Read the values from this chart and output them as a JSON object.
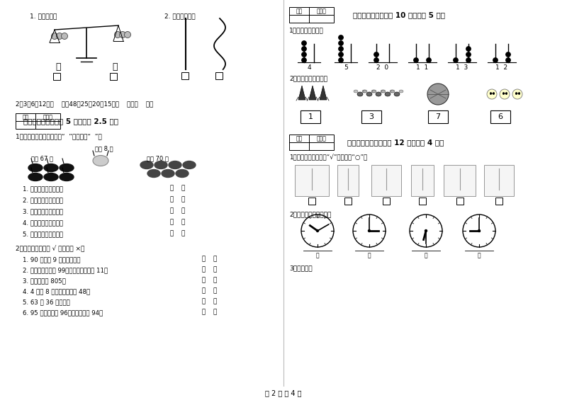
{
  "bg_color": "#ffffff",
  "footer_text": "第 2 页 共 4 页",
  "score_label": "得分",
  "reviewer_label": "评卷人",
  "left": {
    "q1_label": "1. 谁重一些？",
    "q2_label": "2. 哪根长一些？",
    "seq_line": "2、3、6、12、（    ）、48；25、20、15、（    ）、（    ）。",
    "s5_title": "五、对与错（本题共 5 分，每题 2.5 分）",
    "s5_q1_intro": "1、判断下面各题，对的画“  ”，错的画“  ”。",
    "s5_white": "白兔 8 只",
    "s5_black": "黑兔 67 只",
    "s5_grey": "灰兔 70 只",
    "s5_q1": [
      "1. 白兔比黑兔少得多。",
      "2. 黑兔比灰兔少得多。",
      "3. 灰兔比白兔多得多。",
      "4. 灰兔比黑兔多一些。",
      "5. 黑兔与灰兔差不多。"
    ],
    "s5_q2_intro": "2、对的在括号里画 √ ，错的画 ×。",
    "s5_q2": [
      "1. 90 个一和 9 个十同样多。",
      "2. 最大的两位数是 99，最小的两位数是 11。",
      "3. 八十五写作 805。",
      "4. 4 个十 8 个一组成的数是 48。",
      "5. 63 和 36 一样大。",
      "6. 95 前面的数是 96，后面的数是 94。"
    ]
  },
  "right": {
    "s6_title": "六、数一数（本题共 10 分，每题 5 分）",
    "s6_q1": "1、用珠子表示数。",
    "s6_beads": [
      [
        4
      ],
      [
        5
      ],
      [
        2,
        0
      ],
      [
        1,
        1
      ],
      [
        1,
        3
      ],
      [
        1,
        2
      ]
    ],
    "s6_bead_labels": [
      "4",
      "5",
      "2  0",
      "1  1",
      "1  3",
      "1  2"
    ],
    "s6_q2": "2、数一数，连一连。",
    "s6_boxes": [
      "1",
      "3",
      "7",
      "6"
    ],
    "s7_title": "七、看图说话（本题共 12 分，每题 4 分）",
    "s7_q1": "1、看图判断，高的画“√”，矮的画“○”。",
    "s7_q2": "2、写出钟面上的时刻。",
    "s7_q3": "3、连一连。"
  }
}
